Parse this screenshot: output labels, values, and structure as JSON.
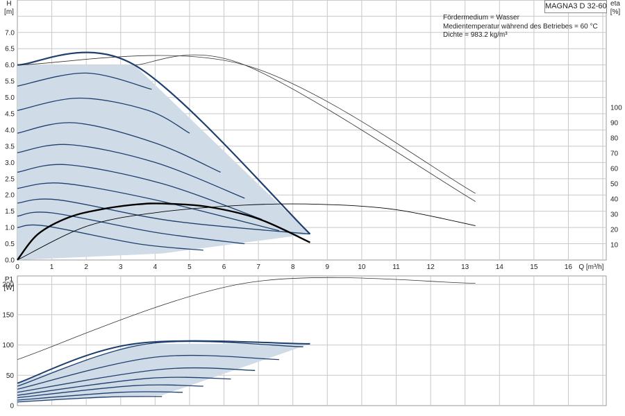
{
  "title": "MAGNA3 D 32-60",
  "info_lines": [
    "Fördermedium = Wasser",
    "Medientemperatur während des Betriebes = 60 °C",
    "Dichte = 983.2 kg/m³"
  ],
  "colors": {
    "curve": "#1f3f6e",
    "fill": "#cfdbe6",
    "grid": "#c8c8c8",
    "thin": "#333333",
    "eta": "#000000"
  },
  "chart_data": [
    {
      "type": "line",
      "title": "MAGNA3 D 32-60",
      "xlabel": "Q [m³/h]",
      "ylabel_left": "H [m]",
      "ylabel_right": "eta [%]",
      "xlim": [
        0,
        17
      ],
      "ylim": [
        0,
        7.5
      ],
      "ylim_right": [
        0,
        100
      ],
      "x_ticks": [
        "0",
        "1",
        "2",
        "3",
        "4",
        "5",
        "6",
        "7",
        "8",
        "9",
        "10",
        "11",
        "12",
        "13",
        "14",
        "15",
        "16"
      ],
      "y_ticks": [
        "0.0",
        "0.5",
        "1.0",
        "1.5",
        "2.0",
        "2.5",
        "3.0",
        "3.5",
        "4.0",
        "4.5",
        "5.0",
        "5.5",
        "6.0",
        "6.5",
        "7.0"
      ],
      "y_right_ticks": [
        "10",
        "20",
        "30",
        "40",
        "50",
        "60",
        "70",
        "80",
        "90",
        "100"
      ],
      "grid": true,
      "operating_area": [
        [
          0,
          6.0
        ],
        [
          3.4,
          6.0
        ],
        [
          8.5,
          0.8
        ],
        [
          4.2,
          0.2
        ],
        [
          0,
          0.0
        ]
      ],
      "series": [
        {
          "values": [
            [
              0,
              6.0
            ],
            [
              3.4,
              6.0
            ],
            [
              8.5,
              0.8
            ]
          ]
        },
        {
          "values": [
            [
              0,
              5.35
            ],
            [
              2.0,
              5.75
            ],
            [
              3.9,
              5.25
            ]
          ]
        },
        {
          "values": [
            [
              0,
              4.6
            ],
            [
              1.8,
              4.98
            ],
            [
              3.8,
              4.6
            ],
            [
              5.0,
              3.9
            ]
          ]
        },
        {
          "values": [
            [
              0,
              3.9
            ],
            [
              1.65,
              4.22
            ],
            [
              4.0,
              3.6
            ],
            [
              5.9,
              2.7
            ]
          ]
        },
        {
          "values": [
            [
              0,
              3.3
            ],
            [
              1.5,
              3.55
            ],
            [
              4.0,
              3.0
            ],
            [
              6.6,
              1.9
            ]
          ]
        },
        {
          "values": [
            [
              0,
              2.7
            ],
            [
              1.45,
              2.93
            ],
            [
              4.2,
              2.35
            ],
            [
              7.1,
              1.25
            ]
          ]
        },
        {
          "values": [
            [
              0,
              2.2
            ],
            [
              1.3,
              2.36
            ],
            [
              4.0,
              1.85
            ],
            [
              7.6,
              0.9
            ]
          ]
        },
        {
          "values": [
            [
              0,
              1.75
            ],
            [
              1.2,
              1.85
            ],
            [
              4.5,
              1.2
            ],
            [
              8.5,
              0.8
            ]
          ]
        },
        {
          "values": [
            [
              0,
              1.35
            ],
            [
              1.0,
              1.45
            ],
            [
              4.0,
              0.85
            ],
            [
              6.6,
              0.5
            ]
          ]
        },
        {
          "values": [
            [
              0,
              1.0
            ],
            [
              0.8,
              1.05
            ],
            [
              3.5,
              0.5
            ],
            [
              5.4,
              0.3
            ]
          ]
        },
        {
          "values": [
            [
              0,
              6.0
            ],
            [
              6.6,
              6.0
            ],
            [
              13.3,
              2.05
            ]
          ]
        },
        {
          "values": [
            [
              3.4,
              6.0
            ],
            [
              6.6,
              6.0
            ],
            [
              13.3,
              1.8
            ]
          ]
        }
      ],
      "eta_series": [
        {
          "values": [
            [
              0,
              0
            ],
            [
              0.6,
              17
            ],
            [
              1.5,
              28
            ],
            [
              2.5,
              33.5
            ],
            [
              3.5,
              36.5
            ],
            [
              4.2,
              37
            ],
            [
              5.5,
              35
            ],
            [
              7.0,
              27
            ],
            [
              8.5,
              11.5
            ]
          ]
        },
        {
          "values": [
            [
              0,
              0
            ],
            [
              2.0,
              22
            ],
            [
              4.0,
              31
            ],
            [
              6.6,
              36
            ],
            [
              8.8,
              36.5
            ],
            [
              11.0,
              33
            ],
            [
              13.3,
              22.5
            ]
          ]
        }
      ]
    },
    {
      "type": "line",
      "ylabel": "P1 [W]",
      "xlim": [
        0,
        17
      ],
      "ylim": [
        0,
        215
      ],
      "y_ticks": [
        "0",
        "50",
        "100",
        "150",
        "200"
      ],
      "grid": true,
      "operating_area": [
        [
          0,
          37
        ],
        [
          3.4,
          102
        ],
        [
          8.5,
          102
        ],
        [
          4.2,
          17
        ],
        [
          0,
          6
        ]
      ],
      "series": [
        {
          "values": [
            [
              0,
              37
            ],
            [
              3.4,
              102
            ],
            [
              8.5,
              102
            ]
          ]
        },
        {
          "values": [
            [
              0,
              32
            ],
            [
              3.8,
              102
            ],
            [
              8.3,
              97
            ]
          ]
        },
        {
          "values": [
            [
              0,
              27
            ],
            [
              4.0,
              80
            ],
            [
              7.6,
              76
            ]
          ]
        },
        {
          "values": [
            [
              0,
              22
            ],
            [
              4.2,
              60
            ],
            [
              6.9,
              58
            ]
          ]
        },
        {
          "values": [
            [
              0,
              17
            ],
            [
              3.8,
              45
            ],
            [
              6.2,
              44
            ]
          ]
        },
        {
          "values": [
            [
              0,
              13
            ],
            [
              3.4,
              33
            ],
            [
              5.4,
              32
            ]
          ]
        },
        {
          "values": [
            [
              0,
              9
            ],
            [
              3.0,
              22
            ],
            [
              4.8,
              22
            ]
          ]
        },
        {
          "values": [
            [
              0,
              6
            ],
            [
              2.5,
              14
            ],
            [
              4.2,
              15
            ]
          ]
        },
        {
          "values": [
            [
              0,
              76
            ],
            [
              6.6,
              202
            ],
            [
              13.3,
              202
            ]
          ]
        }
      ]
    }
  ]
}
